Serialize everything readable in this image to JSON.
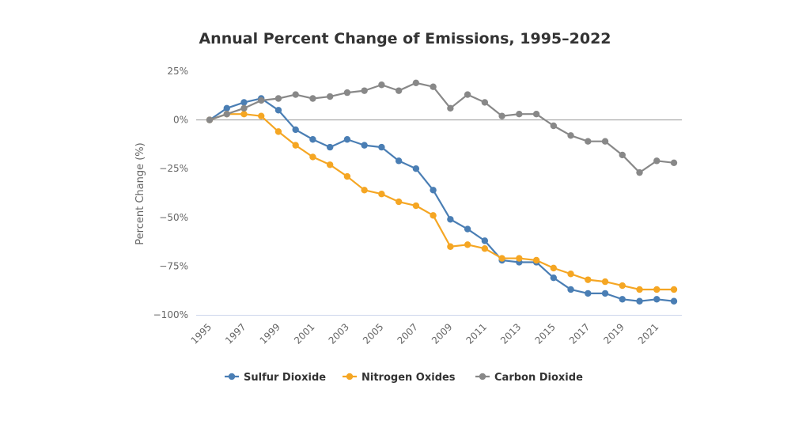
{
  "chart_data": {
    "type": "line",
    "title": "Annual Percent Change of Emissions, 1995–2022",
    "xlabel": "",
    "ylabel": "Percent Change (%)",
    "x": [
      1995,
      1996,
      1997,
      1998,
      1999,
      2000,
      2001,
      2002,
      2003,
      2004,
      2005,
      2006,
      2007,
      2008,
      2009,
      2010,
      2011,
      2012,
      2013,
      2014,
      2015,
      2016,
      2017,
      2018,
      2019,
      2020,
      2021,
      2022
    ],
    "x_tick_labels": [
      "1995",
      "1997",
      "1999",
      "2001",
      "2003",
      "2005",
      "2007",
      "2009",
      "2011",
      "2013",
      "2015",
      "2017",
      "2019",
      "2021"
    ],
    "y_tick_labels": [
      "25%",
      "0%",
      "−25%",
      "−50%",
      "−75%",
      "−100%"
    ],
    "y_ticks": [
      25,
      0,
      -25,
      -50,
      -75,
      -100
    ],
    "ylim": [
      -100,
      25
    ],
    "xlim": [
      1995,
      2022
    ],
    "grid": false,
    "zero_line": true,
    "legend_position": "bottom",
    "series": [
      {
        "name": "Sulfur Dioxide",
        "color": "#4a7eb4",
        "values": [
          0,
          6,
          9,
          11,
          5,
          -5,
          -10,
          -14,
          -10,
          -13,
          -14,
          -21,
          -25,
          -36,
          -51,
          -56,
          -62,
          -72,
          -73,
          -73,
          -81,
          -87,
          -89,
          -89,
          -92,
          -93,
          -92,
          -93
        ]
      },
      {
        "name": "Nitrogen Oxides",
        "color": "#f5a623",
        "values": [
          0,
          3,
          3,
          2,
          -6,
          -13,
          -19,
          -23,
          -29,
          -36,
          -38,
          -42,
          -44,
          -49,
          -65,
          -64,
          -66,
          -71,
          -71,
          -72,
          -76,
          -79,
          -82,
          -83,
          -85,
          -87,
          -87,
          -87
        ]
      },
      {
        "name": "Carbon Dioxide",
        "color": "#888888",
        "values": [
          0,
          3,
          6,
          10,
          11,
          13,
          11,
          12,
          14,
          15,
          18,
          15,
          19,
          17,
          6,
          13,
          9,
          2,
          3,
          3,
          -3,
          -8,
          -11,
          -11,
          -18,
          -27,
          -21,
          -22
        ]
      }
    ]
  },
  "colors": {
    "zero_line": "#999999",
    "axis_line": "#ccd6eb",
    "tick_text": "#666666",
    "title_text": "#333333"
  }
}
